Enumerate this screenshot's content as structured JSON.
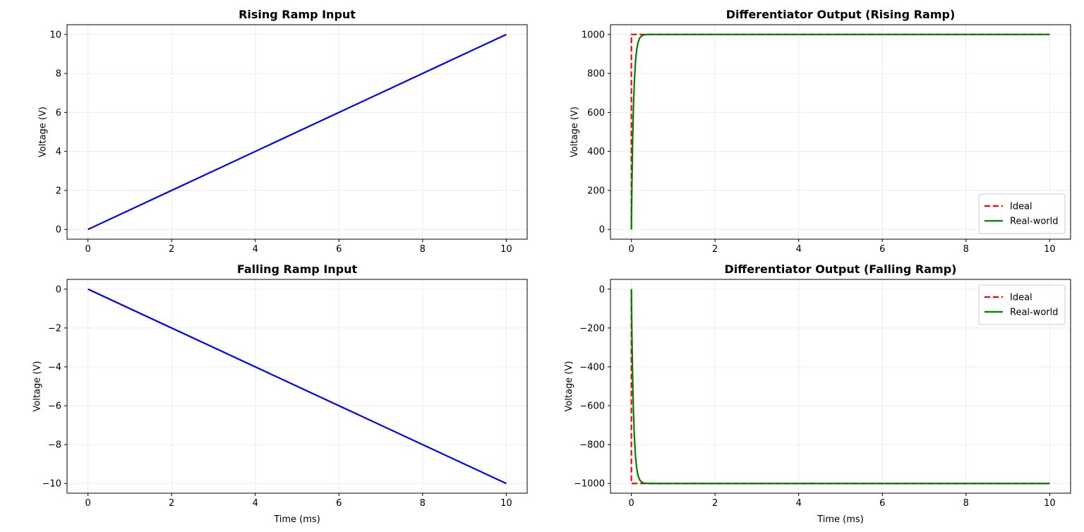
{
  "chart_data": [
    {
      "type": "line",
      "title": "Rising Ramp Input",
      "xlabel": "",
      "ylabel": "Voltage (V)",
      "xlim": [
        -0.5,
        10.5
      ],
      "ylim": [
        -0.5,
        10.5
      ],
      "xticks": [
        "0",
        "2",
        "4",
        "6",
        "8",
        "10"
      ],
      "yticks": [
        "0",
        "2",
        "4",
        "6",
        "8",
        "10"
      ],
      "grid": true,
      "legend": null,
      "series": [
        {
          "color": "#0000ff",
          "dash": "solid",
          "x": [
            0,
            10
          ],
          "y": [
            0,
            10
          ]
        }
      ]
    },
    {
      "type": "line",
      "title": "Differentiator Output (Rising Ramp)",
      "xlabel": "",
      "ylabel": "Voltage (V)",
      "xlim": [
        -0.5,
        10.5
      ],
      "ylim": [
        -50,
        1050
      ],
      "xticks": [
        "0",
        "2",
        "4",
        "6",
        "8",
        "10"
      ],
      "yticks": [
        "0",
        "200",
        "400",
        "600",
        "800",
        "1000"
      ],
      "grid": true,
      "legend": "lower right",
      "series": [
        {
          "name": "Ideal",
          "color": "#ff0000",
          "dash": "dashed",
          "x": [
            0,
            0,
            10
          ],
          "y": [
            0,
            1000,
            1000
          ]
        },
        {
          "name": "Real-world",
          "color": "#008000",
          "dash": "solid",
          "x": [
            0,
            0.01,
            0.02,
            0.03,
            0.05,
            0.07,
            0.1,
            0.13,
            0.16,
            0.2,
            0.25,
            0.3,
            0.4,
            0.5,
            10
          ],
          "y": [
            0,
            181,
            330,
            451,
            632,
            753,
            865,
            926,
            960,
            982,
            993,
            998,
            1000,
            1000,
            1000
          ]
        }
      ]
    },
    {
      "type": "line",
      "title": "Falling Ramp Input",
      "xlabel": "Time (ms)",
      "ylabel": "Voltage (V)",
      "xlim": [
        -0.5,
        10.5
      ],
      "ylim": [
        -10.5,
        0.5
      ],
      "xticks": [
        "0",
        "2",
        "4",
        "6",
        "8",
        "10"
      ],
      "yticks": [
        "0",
        "−2",
        "−4",
        "−6",
        "−8",
        "−10"
      ],
      "grid": true,
      "legend": null,
      "series": [
        {
          "color": "#0000ff",
          "dash": "solid",
          "x": [
            0,
            10
          ],
          "y": [
            0,
            -10
          ]
        }
      ]
    },
    {
      "type": "line",
      "title": "Differentiator Output (Falling Ramp)",
      "xlabel": "Time (ms)",
      "ylabel": "Voltage (V)",
      "xlim": [
        -0.5,
        10.5
      ],
      "ylim": [
        -1050,
        50
      ],
      "xticks": [
        "0",
        "2",
        "4",
        "6",
        "8",
        "10"
      ],
      "yticks": [
        "0",
        "−200",
        "−400",
        "−600",
        "−800",
        "−1000"
      ],
      "grid": true,
      "legend": "upper right",
      "series": [
        {
          "name": "Ideal",
          "color": "#ff0000",
          "dash": "dashed",
          "x": [
            0,
            0,
            10
          ],
          "y": [
            0,
            -1000,
            -1000
          ]
        },
        {
          "name": "Real-world",
          "color": "#008000",
          "dash": "solid",
          "x": [
            0,
            0.01,
            0.02,
            0.03,
            0.05,
            0.07,
            0.1,
            0.13,
            0.16,
            0.2,
            0.25,
            0.3,
            0.4,
            0.5,
            10
          ],
          "y": [
            0,
            -181,
            -330,
            -451,
            -632,
            -753,
            -865,
            -926,
            -960,
            -982,
            -993,
            -998,
            -1000,
            -1000,
            -1000
          ]
        }
      ]
    }
  ]
}
